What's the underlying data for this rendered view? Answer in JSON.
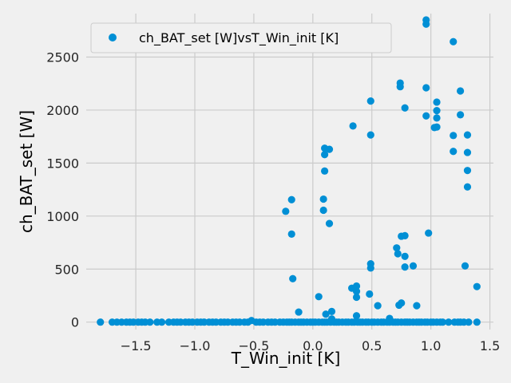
{
  "chart_data": {
    "type": "scatter",
    "xlabel": "T_Win_init [K]",
    "ylabel": "ch_BAT_set [W]",
    "xlim": [
      -1.92,
      1.53
    ],
    "ylim": [
      -70,
      2910
    ],
    "xticks": [
      -1.5,
      -1.0,
      -0.5,
      0.0,
      0.5,
      1.0,
      1.5
    ],
    "xtick_labels": [
      "−1.5",
      "−1.0",
      "−0.5",
      "0.0",
      "0.5",
      "1.0",
      "1.5"
    ],
    "yticks": [
      0,
      500,
      1000,
      1500,
      2000,
      2500
    ],
    "ytick_labels": [
      "0",
      "500",
      "1000",
      "1500",
      "2000",
      "2500"
    ],
    "grid": true,
    "legend_position": "upper-left",
    "colors": {
      "series": "#008fd5",
      "background": "#f0f0f0",
      "grid": "#cbcbcb"
    },
    "series": [
      {
        "name": "ch_BAT_set [W]vsT_Win_init [K]",
        "points": [
          [
            -1.8,
            0
          ],
          [
            -1.7,
            0
          ],
          [
            -1.66,
            0
          ],
          [
            -1.62,
            0
          ],
          [
            -1.58,
            0
          ],
          [
            -1.55,
            0
          ],
          [
            -1.52,
            0
          ],
          [
            -1.48,
            0
          ],
          [
            -1.45,
            0
          ],
          [
            -1.42,
            0
          ],
          [
            -1.38,
            0
          ],
          [
            -1.32,
            0
          ],
          [
            -1.28,
            0
          ],
          [
            -1.22,
            0
          ],
          [
            -1.18,
            0
          ],
          [
            -1.15,
            0
          ],
          [
            -1.12,
            0
          ],
          [
            -1.08,
            0
          ],
          [
            -1.05,
            0
          ],
          [
            -1.02,
            0
          ],
          [
            -0.98,
            0
          ],
          [
            -0.95,
            0
          ],
          [
            -0.92,
            0
          ],
          [
            -0.88,
            0
          ],
          [
            -0.85,
            0
          ],
          [
            -0.82,
            0
          ],
          [
            -0.78,
            0
          ],
          [
            -0.75,
            0
          ],
          [
            -0.72,
            0
          ],
          [
            -0.68,
            0
          ],
          [
            -0.65,
            0
          ],
          [
            -0.62,
            0
          ],
          [
            -0.58,
            0
          ],
          [
            -0.55,
            0
          ],
          [
            -0.52,
            15
          ],
          [
            -0.48,
            0
          ],
          [
            -0.45,
            0
          ],
          [
            -0.42,
            0
          ],
          [
            -0.38,
            0
          ],
          [
            -0.35,
            0
          ],
          [
            -0.32,
            0
          ],
          [
            -0.28,
            0
          ],
          [
            -0.25,
            0
          ],
          [
            -0.22,
            0
          ],
          [
            -0.2,
            0
          ],
          [
            -0.18,
            0
          ],
          [
            -0.15,
            0
          ],
          [
            -0.12,
            0
          ],
          [
            -0.1,
            0
          ],
          [
            -0.08,
            0
          ],
          [
            -0.05,
            0
          ],
          [
            -0.02,
            0
          ],
          [
            0.0,
            0
          ],
          [
            0.02,
            0
          ],
          [
            0.05,
            0
          ],
          [
            0.08,
            0
          ],
          [
            0.1,
            0
          ],
          [
            0.12,
            0
          ],
          [
            0.15,
            0
          ],
          [
            0.18,
            0
          ],
          [
            0.2,
            0
          ],
          [
            0.22,
            0
          ],
          [
            0.25,
            0
          ],
          [
            0.28,
            0
          ],
          [
            0.3,
            0
          ],
          [
            0.33,
            0
          ],
          [
            0.35,
            0
          ],
          [
            0.38,
            0
          ],
          [
            0.4,
            0
          ],
          [
            0.42,
            0
          ],
          [
            0.45,
            0
          ],
          [
            0.47,
            0
          ],
          [
            0.5,
            0
          ],
          [
            0.52,
            0
          ],
          [
            0.55,
            0
          ],
          [
            0.58,
            0
          ],
          [
            0.6,
            0
          ],
          [
            0.63,
            0
          ],
          [
            0.65,
            0
          ],
          [
            0.68,
            0
          ],
          [
            0.7,
            0
          ],
          [
            0.72,
            0
          ],
          [
            0.75,
            0
          ],
          [
            0.78,
            0
          ],
          [
            0.8,
            0
          ],
          [
            0.82,
            0
          ],
          [
            0.85,
            0
          ],
          [
            0.88,
            0
          ],
          [
            0.9,
            0
          ],
          [
            0.92,
            0
          ],
          [
            0.95,
            0
          ],
          [
            0.97,
            0
          ],
          [
            1.0,
            0
          ],
          [
            1.02,
            0
          ],
          [
            1.05,
            0
          ],
          [
            1.08,
            0
          ],
          [
            1.1,
            0
          ],
          [
            1.15,
            0
          ],
          [
            1.2,
            0
          ],
          [
            1.23,
            0
          ],
          [
            1.25,
            0
          ],
          [
            1.28,
            0
          ],
          [
            1.32,
            0
          ],
          [
            1.39,
            0
          ],
          [
            -0.23,
            1045
          ],
          [
            -0.18,
            1155
          ],
          [
            -0.18,
            830
          ],
          [
            -0.17,
            410
          ],
          [
            -0.12,
            95
          ],
          [
            0.05,
            240
          ],
          [
            0.09,
            1055
          ],
          [
            0.09,
            1160
          ],
          [
            0.1,
            1640
          ],
          [
            0.1,
            1425
          ],
          [
            0.1,
            1580
          ],
          [
            0.11,
            75
          ],
          [
            0.14,
            1630
          ],
          [
            0.14,
            930
          ],
          [
            0.16,
            100
          ],
          [
            0.16,
            30
          ],
          [
            0.33,
            320
          ],
          [
            0.34,
            1850
          ],
          [
            0.37,
            340
          ],
          [
            0.37,
            290
          ],
          [
            0.37,
            235
          ],
          [
            0.37,
            60
          ],
          [
            0.48,
            265
          ],
          [
            0.49,
            2085
          ],
          [
            0.49,
            1765
          ],
          [
            0.49,
            550
          ],
          [
            0.49,
            510
          ],
          [
            0.55,
            155
          ],
          [
            0.65,
            35
          ],
          [
            0.71,
            700
          ],
          [
            0.72,
            645
          ],
          [
            0.73,
            160
          ],
          [
            0.74,
            2255
          ],
          [
            0.74,
            2220
          ],
          [
            0.75,
            810
          ],
          [
            0.75,
            180
          ],
          [
            0.78,
            2020
          ],
          [
            0.78,
            815
          ],
          [
            0.78,
            620
          ],
          [
            0.78,
            520
          ],
          [
            0.85,
            530
          ],
          [
            0.88,
            155
          ],
          [
            0.96,
            2850
          ],
          [
            0.96,
            2810
          ],
          [
            0.96,
            2210
          ],
          [
            0.96,
            1945
          ],
          [
            0.98,
            840
          ],
          [
            1.03,
            1835
          ],
          [
            1.05,
            2075
          ],
          [
            1.05,
            1995
          ],
          [
            1.05,
            1925
          ],
          [
            1.05,
            1840
          ],
          [
            1.19,
            2645
          ],
          [
            1.19,
            1760
          ],
          [
            1.19,
            1610
          ],
          [
            1.25,
            2180
          ],
          [
            1.25,
            1955
          ],
          [
            1.29,
            530
          ],
          [
            1.31,
            1765
          ],
          [
            1.31,
            1600
          ],
          [
            1.31,
            1430
          ],
          [
            1.31,
            1275
          ],
          [
            1.39,
            335
          ]
        ]
      }
    ]
  }
}
